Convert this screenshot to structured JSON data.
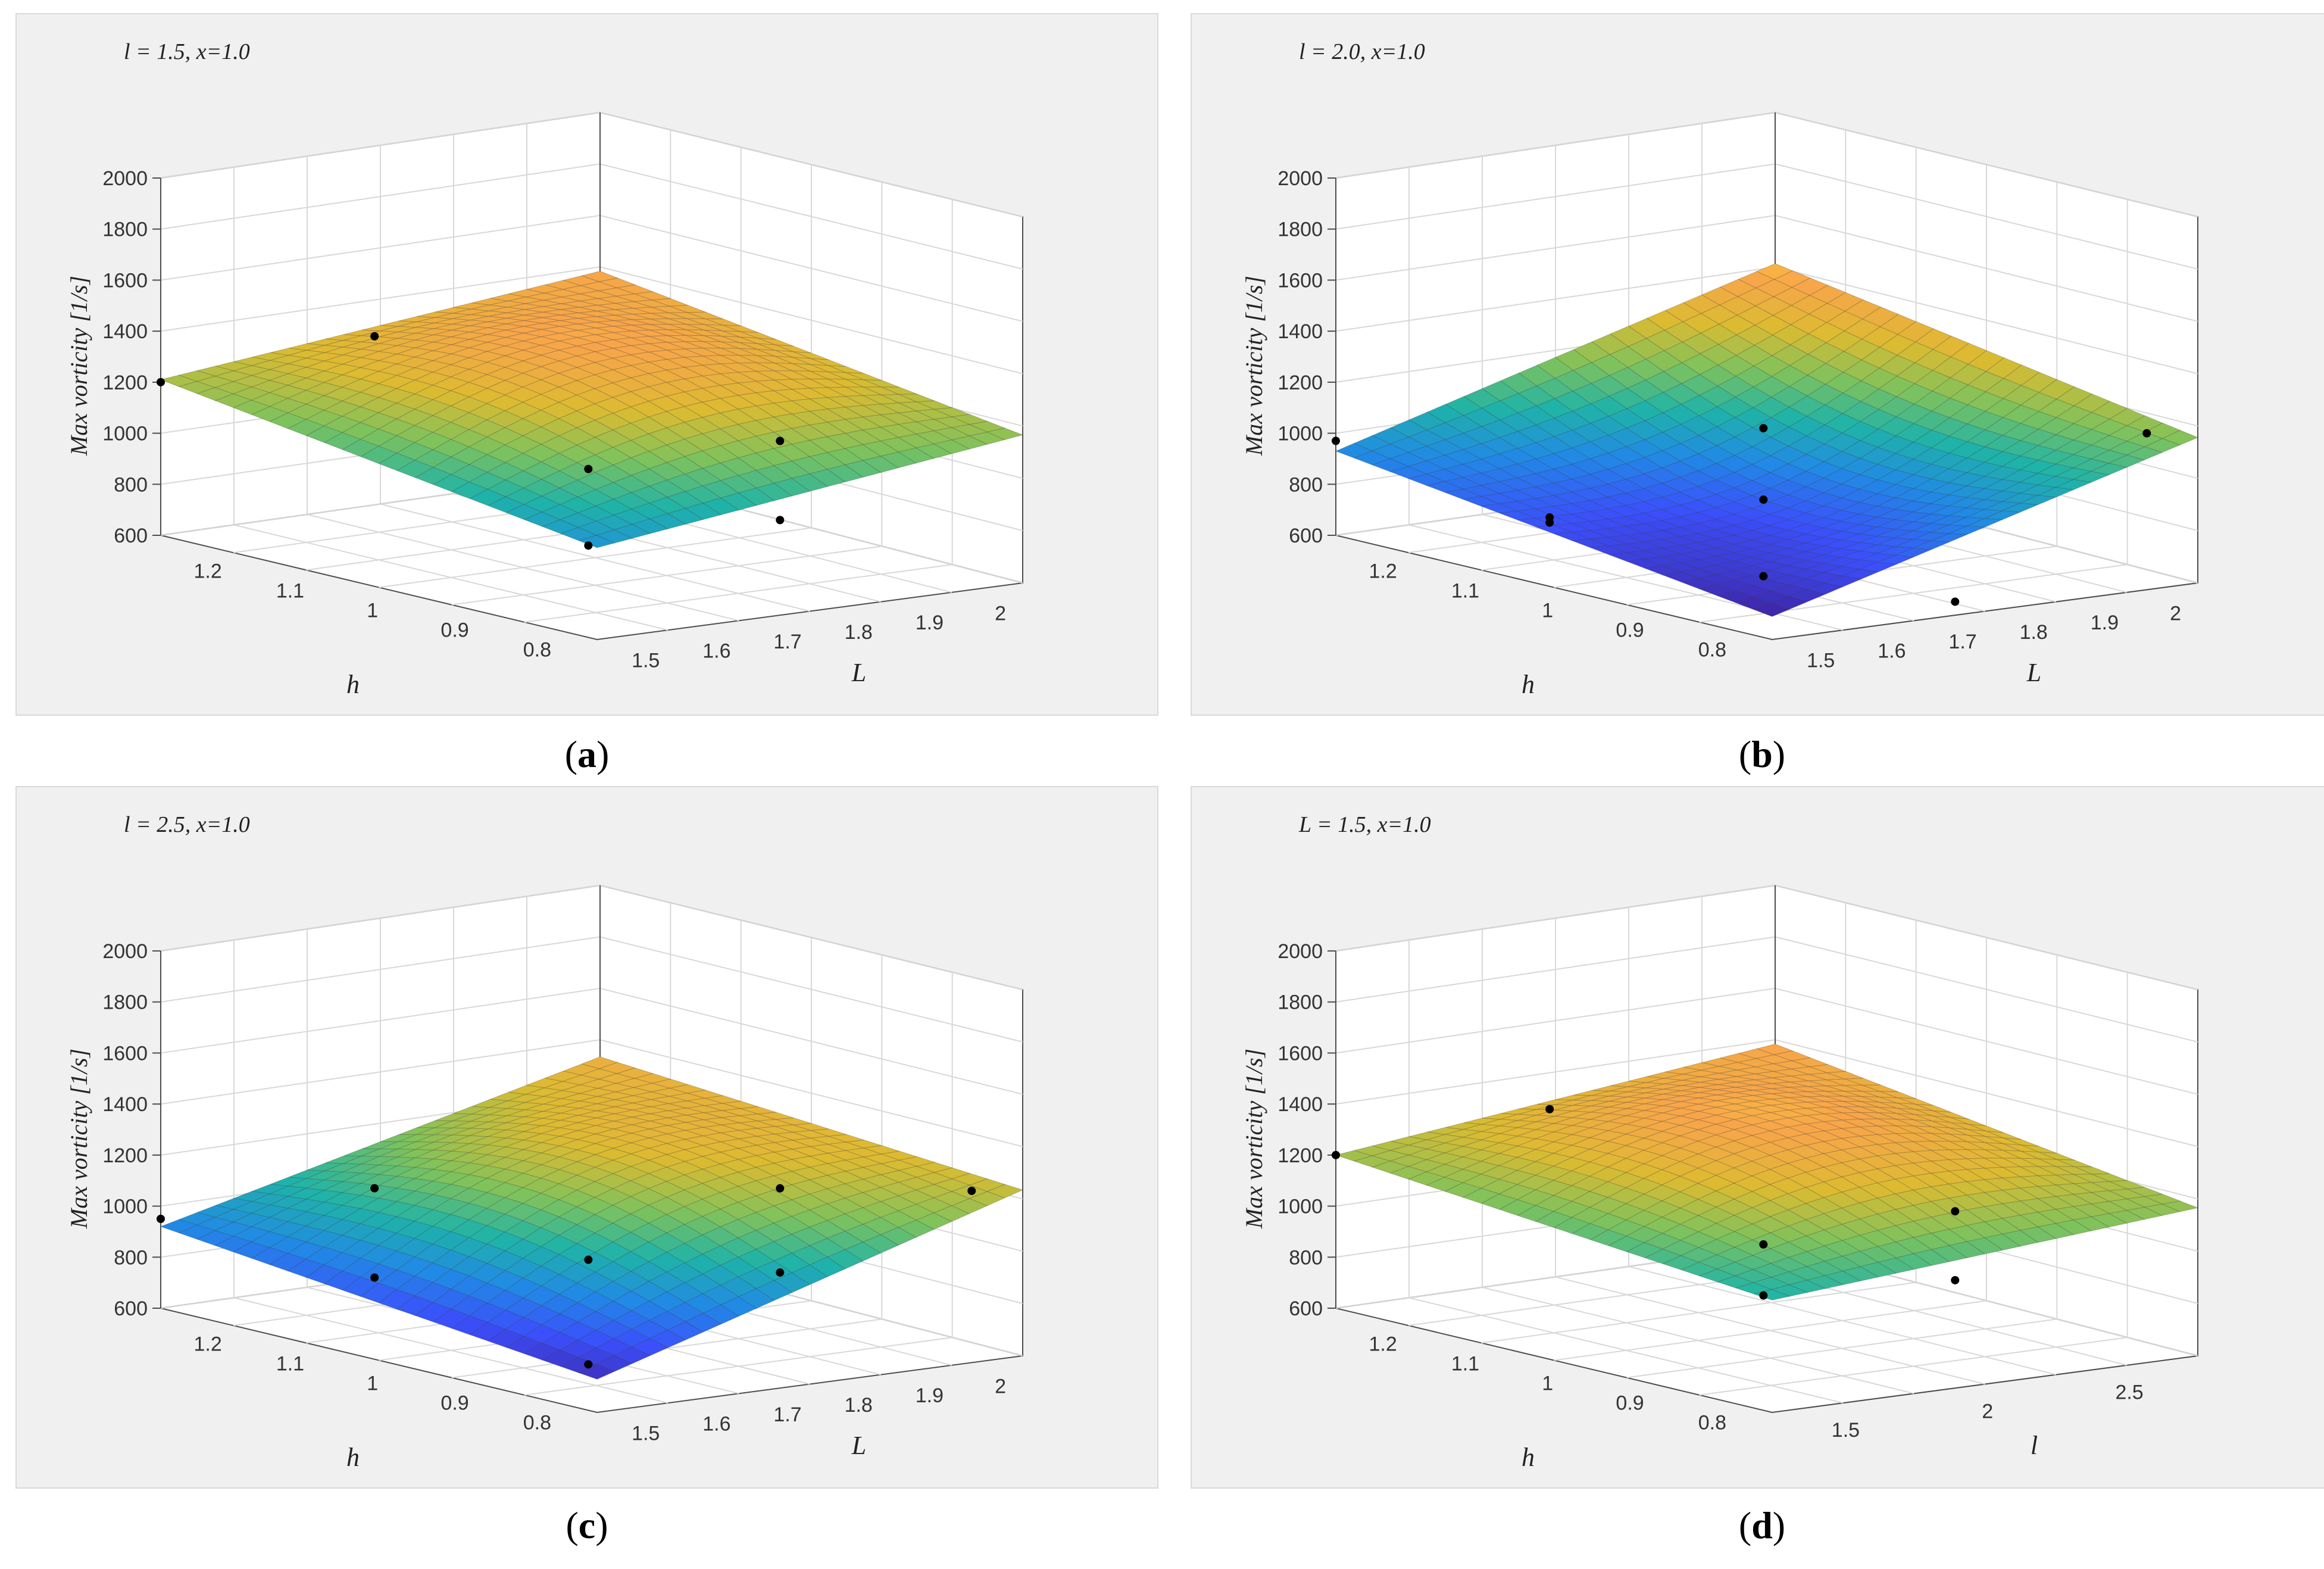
{
  "chart_data": [
    {
      "type": "surface",
      "panel": "a",
      "title": "l = 1.5, x=1.0",
      "zlabel": "Max vorticity [1/s]",
      "xlabel": "h",
      "ylabel": "L",
      "zlim": [
        600,
        2000
      ],
      "zticks": [
        "600",
        "800",
        "1000",
        "1200",
        "1400",
        "1600",
        "1800",
        "2000"
      ],
      "xticks": [
        "1.2",
        "1.1",
        "1",
        "0.9",
        "0.8"
      ],
      "yticks": [
        "1.5",
        "1.6",
        "1.7",
        "1.8",
        "1.9",
        "2"
      ],
      "grid": true,
      "points": [
        {
          "h": 1.25,
          "L": 1.5,
          "z": 1200
        },
        {
          "h": 1.0,
          "L": 1.5,
          "z": 1580
        },
        {
          "h": 0.75,
          "L": 1.5,
          "z": 1260
        },
        {
          "h": 0.75,
          "L": 1.5,
          "z": 960
        },
        {
          "h": 0.75,
          "L": 1.75,
          "z": 1270
        },
        {
          "h": 0.75,
          "L": 1.75,
          "z": 960
        }
      ],
      "corners": {
        "front_left": 1210,
        "front_right": 1180,
        "back_top": 1390,
        "front_bottom": 960
      }
    },
    {
      "type": "surface",
      "panel": "b",
      "title": "l = 2.0, x=1.0",
      "zlabel": "Max vorticity [1/s]",
      "xlabel": "h",
      "ylabel": "L",
      "zlim": [
        600,
        2000
      ],
      "zticks": [
        "600",
        "800",
        "1000",
        "1200",
        "1400",
        "1600",
        "1800",
        "2000"
      ],
      "xticks": [
        "1.2",
        "1.1",
        "1",
        "0.9",
        "0.8"
      ],
      "yticks": [
        "1.5",
        "1.6",
        "1.7",
        "1.8",
        "1.9",
        "2"
      ],
      "grid": true,
      "points": [
        {
          "h": 1.25,
          "L": 1.5,
          "z": 970
        },
        {
          "h": 1.0,
          "L": 1.5,
          "z": 870
        },
        {
          "h": 1.0,
          "L": 1.5,
          "z": 850
        },
        {
          "h": 0.75,
          "L": 1.5,
          "z": 1420
        },
        {
          "h": 0.75,
          "L": 1.5,
          "z": 1140
        },
        {
          "h": 0.75,
          "L": 1.5,
          "z": 840
        },
        {
          "h": 0.75,
          "L": 1.75,
          "z": 640
        },
        {
          "h": 0.75,
          "L": 2.0,
          "z": 1200
        }
      ],
      "corners": {
        "front_left": 930,
        "front_right": 1170,
        "back_top": 1420,
        "front_bottom": 690
      }
    },
    {
      "type": "surface",
      "panel": "c",
      "title": "l = 2.5, x=1.0",
      "zlabel": "Max vorticity [1/s]",
      "xlabel": "h",
      "ylabel": "L",
      "zlim": [
        600,
        2000
      ],
      "zticks": [
        "600",
        "800",
        "1000",
        "1200",
        "1400",
        "1600",
        "1800",
        "2000"
      ],
      "xticks": [
        "1.2",
        "1.1",
        "1",
        "0.9",
        "0.8"
      ],
      "yticks": [
        "1.5",
        "1.6",
        "1.7",
        "1.8",
        "1.9",
        "2"
      ],
      "grid": true,
      "points": [
        {
          "h": 1.25,
          "L": 1.5,
          "z": 950
        },
        {
          "h": 1.0,
          "L": 1.5,
          "z": 1270
        },
        {
          "h": 1.0,
          "L": 1.5,
          "z": 920
        },
        {
          "h": 0.75,
          "L": 1.5,
          "z": 1190
        },
        {
          "h": 0.75,
          "L": 1.5,
          "z": 780
        },
        {
          "h": 0.75,
          "L": 1.75,
          "z": 1370
        },
        {
          "h": 0.75,
          "L": 1.75,
          "z": 1040
        },
        {
          "h": 0.75,
          "L": 2.0,
          "z": 1260
        }
      ],
      "corners": {
        "front_left": 920,
        "front_right": 1250,
        "back_top": 1340,
        "front_bottom": 730
      }
    },
    {
      "type": "surface",
      "panel": "d",
      "title": "L = 1.5, x=1.0",
      "zlabel": "Max vorticity [1/s]",
      "xlabel": "h",
      "ylabel": "l",
      "zlim": [
        600,
        2000
      ],
      "zticks": [
        "600",
        "800",
        "1000",
        "1200",
        "1400",
        "1600",
        "1800",
        "2000"
      ],
      "xticks": [
        "1.2",
        "1.1",
        "1",
        "0.9",
        "0.8"
      ],
      "yticks": [
        "1.5",
        "2",
        "2.5"
      ],
      "grid": true,
      "points": [
        {
          "h": 1.25,
          "l": 1.5,
          "z": 1200
        },
        {
          "h": 1.0,
          "l": 1.5,
          "z": 1580
        },
        {
          "h": 0.75,
          "l": 1.5,
          "z": 1250
        },
        {
          "h": 0.75,
          "l": 1.5,
          "z": 1050
        },
        {
          "h": 0.75,
          "l": 2.0,
          "z": 1280
        },
        {
          "h": 0.75,
          "l": 2.0,
          "z": 1010
        }
      ],
      "corners": {
        "front_left": 1200,
        "front_right": 1180,
        "back_top": 1390,
        "front_bottom": 1040
      }
    }
  ],
  "captions": [
    "(a)",
    "(b)",
    "(c)",
    "(d)"
  ],
  "caption_letters": [
    "a",
    "b",
    "c",
    "d"
  ],
  "colors": {
    "panel_bg": "#f0f0f0",
    "grid": "#d8d8d8",
    "axis": "#4d4d4d",
    "point": "#000000",
    "colormap": [
      "#3e26a8",
      "#3b4ffb",
      "#218ae5",
      "#1fb3a8",
      "#7fc25c",
      "#dcbb31",
      "#f8a54a",
      "#f9f620"
    ]
  }
}
